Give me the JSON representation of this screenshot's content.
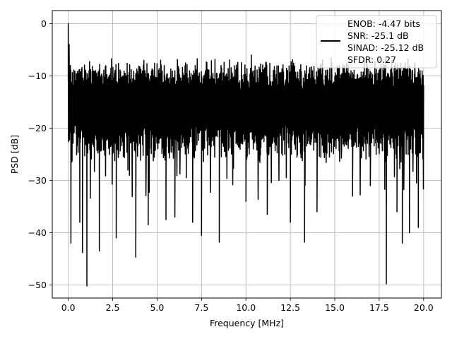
{
  "chart_data": {
    "type": "line",
    "xlabel": "Frequency [MHz]",
    "ylabel": "PSD [dB]",
    "xlim": [
      -0.9,
      21.0
    ],
    "ylim": [
      -52.5,
      2.5
    ],
    "xticks": [
      0.0,
      2.5,
      5.0,
      7.5,
      10.0,
      12.5,
      15.0,
      17.5,
      20.0
    ],
    "xtick_labels": [
      "0.0",
      "2.5",
      "5.0",
      "7.5",
      "10.0",
      "12.5",
      "15.0",
      "17.5",
      "20.0"
    ],
    "yticks": [
      0,
      -10,
      -20,
      -30,
      -40,
      -50
    ],
    "ytick_labels": [
      "0",
      "−10",
      "−20",
      "−30",
      "−40",
      "−50"
    ],
    "grid": true,
    "legend_position": "top-right",
    "legend_entries": [
      "ENOB: -4.47 bits",
      "SNR: -25.1 dB",
      "SINAD: -25.12 dB",
      "SFDR: 0.27"
    ],
    "line_color": "#000000",
    "series": [
      {
        "x_start": 0.0,
        "x_end": 20.0,
        "noise_floor_db": -16,
        "upper_envelope_db": -8,
        "lower_envelope_db": -24,
        "peaks": [
          [
            0.0,
            0.0
          ],
          [
            0.05,
            -4.0
          ],
          [
            0.12,
            -8.0
          ],
          [
            1.6,
            -9.5
          ],
          [
            5.2,
            -7.0
          ],
          [
            10.3,
            -6.0
          ],
          [
            14.8,
            -6.5
          ],
          [
            19.5,
            -7.5
          ]
        ],
        "dips": [
          [
            0.15,
            -42.0
          ],
          [
            0.65,
            -38.0
          ],
          [
            0.8,
            -43.8
          ],
          [
            1.05,
            -50.2
          ],
          [
            1.75,
            -43.5
          ],
          [
            2.7,
            -41.0
          ],
          [
            3.8,
            -44.7
          ],
          [
            4.5,
            -38.5
          ],
          [
            5.5,
            -37.5
          ],
          [
            6.0,
            -37.0
          ],
          [
            7.0,
            -38.0
          ],
          [
            7.5,
            -40.5
          ],
          [
            8.5,
            -41.8
          ],
          [
            10.0,
            -34.0
          ],
          [
            11.2,
            -36.5
          ],
          [
            12.5,
            -38.0
          ],
          [
            13.3,
            -41.8
          ],
          [
            14.0,
            -36.0
          ],
          [
            16.0,
            -33.0
          ],
          [
            17.0,
            -31.0
          ],
          [
            17.9,
            -49.8
          ],
          [
            18.5,
            -36.0
          ],
          [
            18.8,
            -42.0
          ],
          [
            19.2,
            -40.0
          ],
          [
            19.7,
            -39.0
          ]
        ]
      }
    ]
  }
}
